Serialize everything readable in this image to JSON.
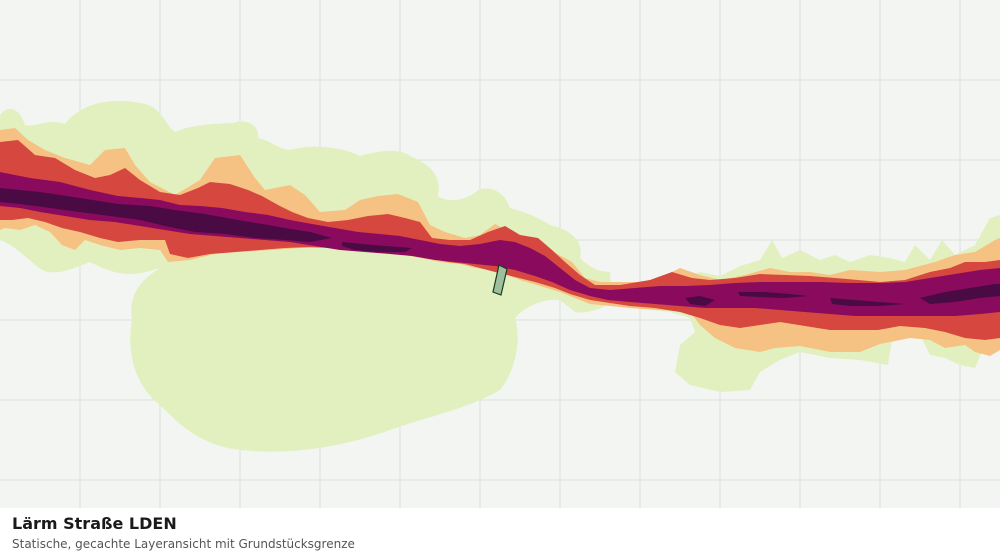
{
  "map": {
    "title": "Lärm Straße LDEN",
    "subtitle": "Statische, gecachte Layeransicht mit Grundstücksgrenze",
    "layer_name": "Lärm Straße LDEN",
    "view": "static-cached",
    "noise_band_colors": {
      "lowest": "#e2f0c0",
      "low": "#f5c283",
      "medium": "#d5473f",
      "high": "#8a0a5e",
      "highest": "#4a0a44"
    },
    "parcel_boundary": {
      "fill": "#9dbf9d",
      "stroke": "#1a3a1a"
    },
    "background_color": "#f3f5f3",
    "grid_color": "#dcdfdc"
  }
}
